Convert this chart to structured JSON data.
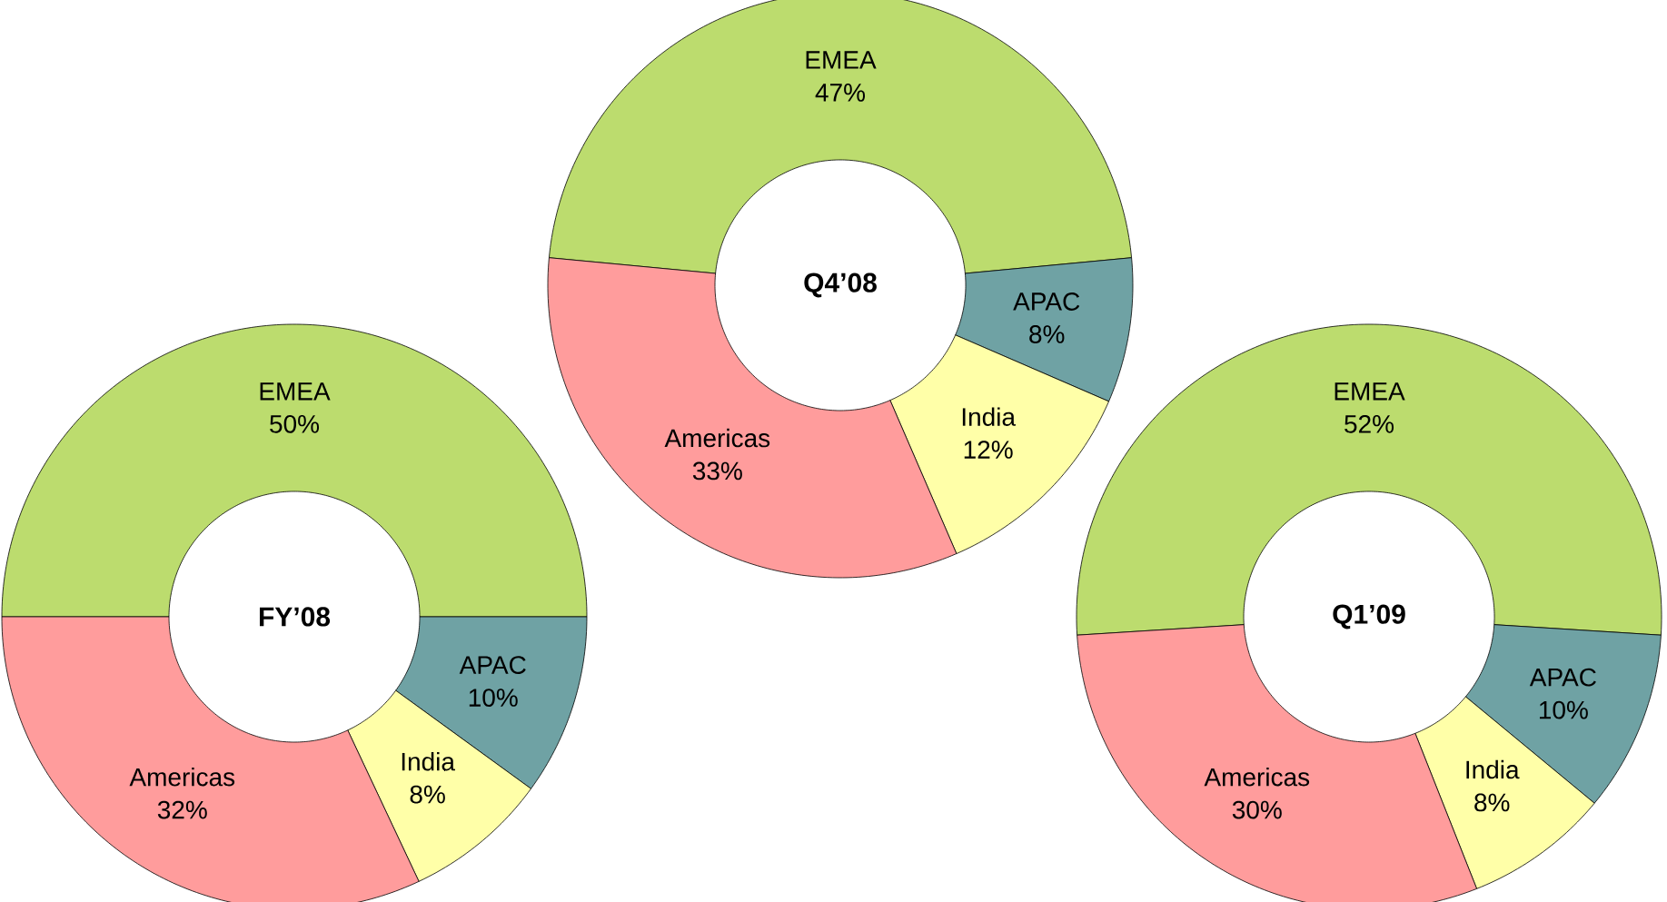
{
  "chart_data": [
    {
      "type": "donut",
      "title": "FY’08",
      "categories": [
        "EMEA",
        "APAC",
        "India",
        "Americas"
      ],
      "values": [
        50,
        10,
        8,
        32
      ],
      "value_labels": [
        "50%",
        "10%",
        "8%",
        "32%"
      ],
      "colors": [
        "#bcdc6e",
        "#6fa2a4",
        "#ffffa8",
        "#ff9c9c"
      ]
    },
    {
      "type": "donut",
      "title": "Q4’08",
      "categories": [
        "EMEA",
        "APAC",
        "India",
        "Americas"
      ],
      "values": [
        47,
        8,
        12,
        33
      ],
      "value_labels": [
        "47%",
        "8%",
        "12%",
        "33%"
      ],
      "colors": [
        "#bcdc6e",
        "#6fa2a4",
        "#ffffa8",
        "#ff9c9c"
      ]
    },
    {
      "type": "donut",
      "title": "Q1’09",
      "categories": [
        "EMEA",
        "APAC",
        "India",
        "Americas"
      ],
      "values": [
        52,
        10,
        8,
        30
      ],
      "value_labels": [
        "52%",
        "10%",
        "8%",
        "30%"
      ],
      "colors": [
        "#bcdc6e",
        "#6fa2a4",
        "#ffffa8",
        "#ff9c9c"
      ]
    }
  ]
}
